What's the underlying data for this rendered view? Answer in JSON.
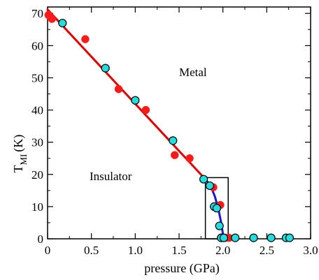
{
  "chart_data": {
    "type": "scatter",
    "xlabel": "pressure (GPa)",
    "ylabel": {
      "main": "T",
      "sub": "MI",
      "unit": "(K)"
    },
    "xlim": [
      0,
      3.0
    ],
    "ylim": [
      0,
      72
    ],
    "x_ticks": [
      0,
      0.5,
      1.0,
      1.5,
      2.0,
      2.5,
      3.0
    ],
    "x_tick_labels": [
      "0",
      "0.5",
      "1.0",
      "1.5",
      "2.0",
      "2.5",
      "3.0"
    ],
    "y_ticks": [
      0,
      10,
      20,
      30,
      40,
      50,
      60,
      70
    ],
    "y_tick_labels": [
      "0",
      "10",
      "20",
      "30",
      "40",
      "50",
      "60",
      "70"
    ],
    "annotations": {
      "metal": "Metal",
      "insulator": "Insulator"
    },
    "series": [
      {
        "marker": "circle-filled",
        "color": "#ff1a1a",
        "points": [
          [
            0.01,
            69.5
          ],
          [
            0.03,
            69.0
          ],
          [
            0.05,
            68.3
          ],
          [
            0.43,
            62.0
          ],
          [
            0.81,
            46.5
          ],
          [
            1.12,
            40.0
          ],
          [
            1.45,
            26.0
          ],
          [
            1.62,
            25.0
          ],
          [
            1.89,
            16.0
          ],
          [
            1.97,
            10.5
          ],
          [
            2.03,
            0.3
          ],
          [
            2.07,
            0.3
          ]
        ]
      },
      {
        "marker": "circle-cyan",
        "color": "#22dddd",
        "points": [
          [
            0.17,
            67.0
          ],
          [
            0.66,
            53.0
          ],
          [
            1.0,
            43.0
          ],
          [
            1.43,
            30.5
          ],
          [
            1.78,
            18.5
          ],
          [
            1.85,
            16.5
          ],
          [
            1.9,
            10.0
          ],
          [
            1.93,
            9.5
          ],
          [
            1.96,
            4.0
          ],
          [
            1.98,
            0.3
          ],
          [
            2.01,
            0.3
          ],
          [
            2.14,
            0.3
          ],
          [
            2.35,
            0.3
          ],
          [
            2.55,
            0.3
          ],
          [
            2.72,
            0.3
          ],
          [
            2.76,
            0.3
          ]
        ]
      }
    ],
    "fit_line_red": {
      "color": "#e00000",
      "points": [
        [
          0.0,
          71.2
        ],
        [
          1.8,
          18.5
        ]
      ]
    },
    "fit_curve_blue": {
      "color": "#1a1ad9",
      "points": [
        [
          1.8,
          18.5
        ],
        [
          1.86,
          16.5
        ],
        [
          1.91,
          13.0
        ],
        [
          1.95,
          9.0
        ],
        [
          1.98,
          5.0
        ],
        [
          2.0,
          1.5
        ],
        [
          2.0,
          0.0
        ]
      ]
    },
    "inset_box": {
      "x0": 1.8,
      "x1": 2.06,
      "y0": 0,
      "y1": 19
    }
  }
}
